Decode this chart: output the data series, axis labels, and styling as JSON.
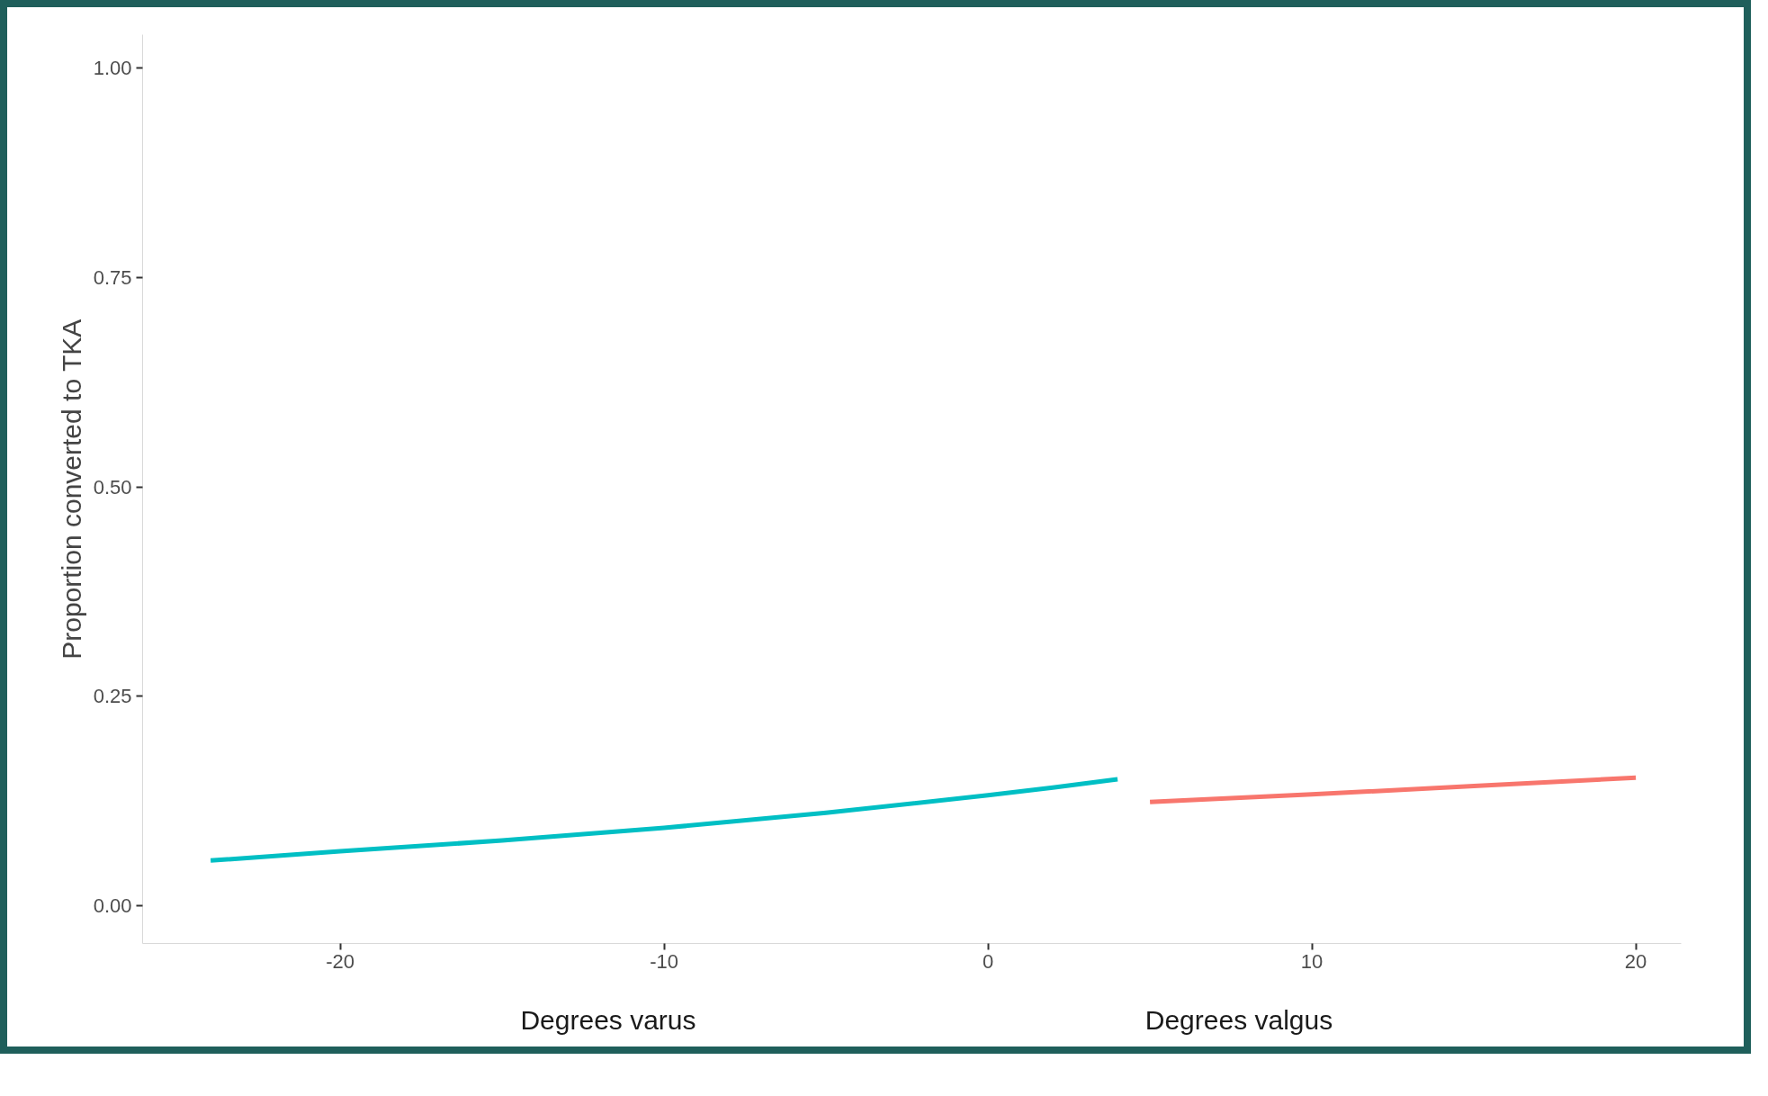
{
  "chart_data": {
    "type": "line",
    "xlabel": "Degrees varus",
    "ylabel": "Proportion converted to TKA",
    "annotations": [
      "Degrees valgus"
    ],
    "series": [
      {
        "color": "#00bfc4",
        "x": [
          -24,
          -20,
          -15,
          -10,
          -5,
          0,
          2,
          4
        ],
        "values": [
          0.054,
          0.065,
          0.078,
          0.093,
          0.111,
          0.132,
          0.141,
          0.151
        ]
      },
      {
        "color": "#f8766d",
        "x": [
          5,
          10,
          15,
          20
        ],
        "values": [
          0.124,
          0.133,
          0.143,
          0.153
        ]
      }
    ],
    "xlim": [
      -26.1,
      21.4
    ],
    "ylim": [
      -0.045,
      1.04
    ],
    "xticks": [
      -20,
      -10,
      0,
      10,
      20
    ],
    "yticks": [
      {
        "value": 0,
        "label": "0.00"
      },
      {
        "value": 0.25,
        "label": "0.25"
      },
      {
        "value": 0.5,
        "label": "0.50"
      },
      {
        "value": 0.75,
        "label": "0.75"
      },
      {
        "value": 1,
        "label": "1.00"
      }
    ],
    "grid": false,
    "line_style": "solid"
  }
}
